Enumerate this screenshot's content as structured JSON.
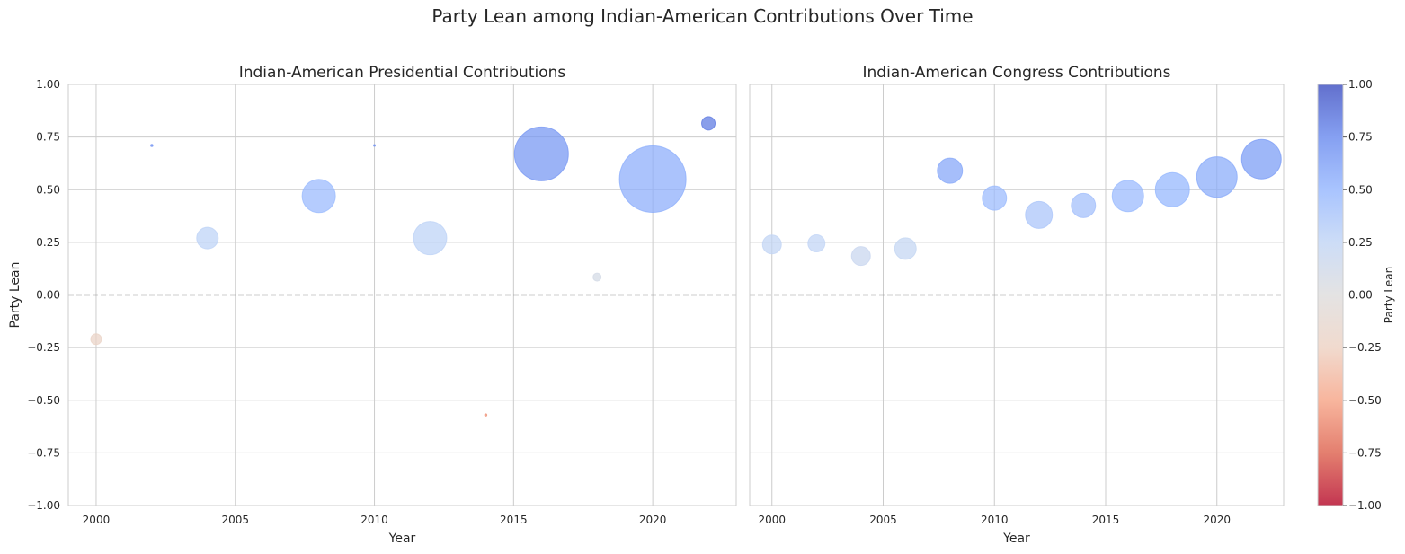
{
  "suptitle": "Party Lean among Indian-American Contributions Over Time",
  "chart_data": [
    {
      "type": "scatter",
      "title": "Indian-American Presidential Contributions",
      "xlabel": "Year",
      "ylabel": "Party Lean",
      "xlim": [
        1999,
        2023
      ],
      "ylim": [
        -1.0,
        1.0
      ],
      "x_ticks": [
        "2000",
        "2005",
        "2010",
        "2015",
        "2020"
      ],
      "y_ticks": [
        "−1.00",
        "−0.75",
        "−0.50",
        "−0.25",
        "0.00",
        "0.25",
        "0.50",
        "0.75",
        "1.00"
      ],
      "grid": true,
      "reference_line": {
        "y": 0,
        "style": "dashed"
      },
      "size_encoding": "relative contribution amount",
      "color_encoding": "Party Lean (coolwarm, -1 red to 1 blue)",
      "points": [
        {
          "x": 2000,
          "y": -0.21,
          "size": 12
        },
        {
          "x": 2002,
          "y": 0.71,
          "size": 2.5
        },
        {
          "x": 2004,
          "y": 0.27,
          "size": 24
        },
        {
          "x": 2008,
          "y": 0.47,
          "size": 37
        },
        {
          "x": 2010,
          "y": 0.71,
          "size": 2
        },
        {
          "x": 2012,
          "y": 0.27,
          "size": 37
        },
        {
          "x": 2014,
          "y": -0.57,
          "size": 2.5
        },
        {
          "x": 2016,
          "y": 0.67,
          "size": 60
        },
        {
          "x": 2018,
          "y": 0.085,
          "size": 9
        },
        {
          "x": 2020,
          "y": 0.55,
          "size": 74
        },
        {
          "x": 2022,
          "y": 0.815,
          "size": 15
        }
      ]
    },
    {
      "type": "scatter",
      "title": "Indian-American Congress Contributions",
      "xlabel": "Year",
      "ylabel": "",
      "xlim": [
        1999,
        2023
      ],
      "ylim": [
        -1.0,
        1.0
      ],
      "x_ticks": [
        "2000",
        "2005",
        "2010",
        "2015",
        "2020"
      ],
      "grid": true,
      "reference_line": {
        "y": 0,
        "style": "dashed"
      },
      "points": [
        {
          "x": 2000,
          "y": 0.24,
          "size": 21
        },
        {
          "x": 2002,
          "y": 0.245,
          "size": 19
        },
        {
          "x": 2004,
          "y": 0.185,
          "size": 21
        },
        {
          "x": 2006,
          "y": 0.22,
          "size": 24
        },
        {
          "x": 2008,
          "y": 0.59,
          "size": 28
        },
        {
          "x": 2010,
          "y": 0.46,
          "size": 27
        },
        {
          "x": 2012,
          "y": 0.38,
          "size": 30
        },
        {
          "x": 2014,
          "y": 0.425,
          "size": 27
        },
        {
          "x": 2016,
          "y": 0.47,
          "size": 35
        },
        {
          "x": 2018,
          "y": 0.5,
          "size": 38
        },
        {
          "x": 2020,
          "y": 0.56,
          "size": 45
        },
        {
          "x": 2022,
          "y": 0.645,
          "size": 44
        }
      ]
    }
  ],
  "colorbar": {
    "label": "Party Lean",
    "range": [
      -1.0,
      1.0
    ],
    "ticks": [
      "−1.00",
      "−0.75",
      "−0.50",
      "−0.25",
      "0.00",
      "0.25",
      "0.50",
      "0.75",
      "1.00"
    ],
    "colormap_stops": [
      "#b40426",
      "#dd5f4b",
      "#f6a385",
      "#edd1c2",
      "#dddcdc",
      "#c0d4f5",
      "#93b5fe",
      "#6788ee",
      "#3b4cc0"
    ]
  }
}
